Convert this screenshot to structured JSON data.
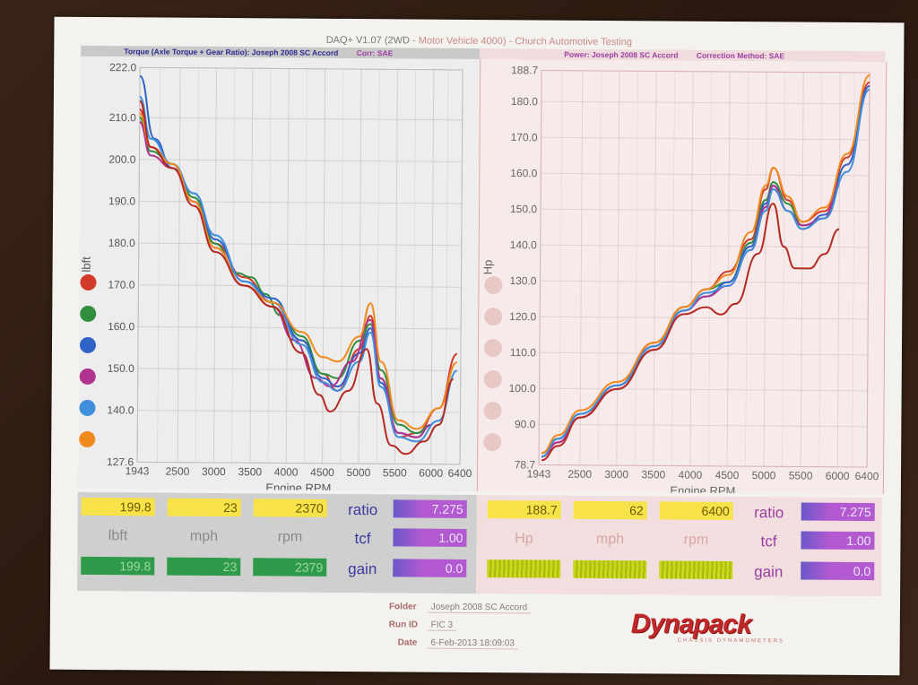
{
  "header": {
    "title_part1": "DAQ+ V1.07 (2WD",
    "title_part2": " - Motor Vehicle 4000) - Church Automotive Testing"
  },
  "left_bar": {
    "title": "Torque (Axle Torque + Gear Ratio): Joseph 2008 SC Accord",
    "corr": "Corr: SAE"
  },
  "right_bar": {
    "title": "Power: Joseph 2008 SC Accord",
    "correction": "Correction Method: SAE"
  },
  "colors": {
    "red": "#d23a2a",
    "darkred": "#b52a22",
    "green": "#2f8f3e",
    "blue": "#2f63c8",
    "magenta": "#b0338f",
    "lightblue": "#3f8fdc",
    "orange": "#f08a1e"
  },
  "legend_dots_left": [
    "#d23a2a",
    "#2f8f3e",
    "#2f63c8",
    "#b0338f",
    "#3f8fdc",
    "#f08a1e"
  ],
  "chart_data": [
    {
      "type": "line",
      "ylabel": "lbft",
      "xlabel": "Engine RPM",
      "x_ticks": [
        "1943",
        "2500",
        "3000",
        "3500",
        "4000",
        "4500",
        "5000",
        "5500",
        "6000",
        "6400"
      ],
      "xlim": [
        1943,
        6400
      ],
      "y_ticks": [
        "222.0",
        "210.0",
        "200.0",
        "190.0",
        "180.0",
        "170.0",
        "160.0",
        "150.0",
        "140.0",
        "127.6"
      ],
      "ylim": [
        127.6,
        222.0
      ],
      "grid": true,
      "series": [
        {
          "color": "#d23a2a",
          "x": [
            1943,
            2100,
            2400,
            2700,
            3000,
            3400,
            3800,
            4200,
            4500,
            4700,
            5000,
            5150,
            5300,
            5550,
            5800,
            6100,
            6350
          ],
          "y": [
            212,
            203,
            199,
            190,
            180,
            172,
            166,
            157,
            149,
            145,
            155,
            163,
            148,
            134,
            135,
            141,
            154
          ]
        },
        {
          "color": "#2f8f3e",
          "x": [
            1943,
            2100,
            2400,
            2700,
            3000,
            3300,
            3500,
            3700,
            3900,
            4200,
            4500,
            4700,
            5000,
            5150,
            5300,
            5550,
            5800,
            6000
          ],
          "y": [
            210,
            202,
            199,
            191,
            180,
            173,
            172,
            168,
            163,
            158,
            149,
            148,
            157,
            161,
            150,
            137,
            135,
            137
          ]
        },
        {
          "color": "#2f63c8",
          "x": [
            1943,
            2150,
            2400,
            2700,
            3000,
            3400,
            3800,
            4200,
            4500,
            4700,
            5000,
            5150,
            5300,
            5550,
            5800,
            6000
          ],
          "y": [
            220,
            205,
            198,
            192,
            181,
            171,
            167,
            157,
            148,
            146,
            154,
            160,
            147,
            135,
            134,
            137
          ]
        },
        {
          "color": "#b0338f",
          "x": [
            1943,
            2100,
            2400,
            2700,
            3000,
            3400,
            3800,
            4100,
            4400,
            4600,
            4900,
            5150,
            5300,
            5550,
            5800,
            6000
          ],
          "y": [
            209,
            201,
            198,
            190,
            179,
            170,
            165,
            157,
            148,
            146,
            152,
            162,
            148,
            135,
            134,
            137
          ]
        },
        {
          "color": "#3f8fdc",
          "x": [
            1943,
            2100,
            2400,
            2700,
            3000,
            3400,
            3800,
            4200,
            4500,
            4700,
            5000,
            5150,
            5300,
            5550,
            5800,
            6100,
            6350
          ],
          "y": [
            215,
            205,
            199,
            192,
            182,
            171,
            166,
            156,
            147,
            145,
            152,
            159,
            146,
            134,
            133,
            138,
            150
          ]
        },
        {
          "color": "#f08a1e",
          "x": [
            1943,
            2100,
            2400,
            2700,
            3000,
            3400,
            3800,
            4200,
            4500,
            4700,
            5000,
            5150,
            5300,
            5550,
            5800,
            6100,
            6350
          ],
          "y": [
            211,
            203,
            199,
            190,
            179,
            170,
            166,
            159,
            153,
            152,
            158,
            166,
            152,
            138,
            136,
            141,
            152
          ]
        },
        {
          "color": "#b52a22",
          "x": [
            1943,
            2100,
            2400,
            2700,
            3000,
            3400,
            3800,
            4200,
            4450,
            4600,
            4850,
            5100,
            5250,
            5450,
            5650,
            5900,
            6100,
            6300
          ],
          "y": [
            214,
            203,
            198,
            189,
            178,
            170,
            165,
            154,
            144,
            140,
            145,
            155,
            142,
            132,
            130,
            133,
            137,
            148
          ]
        }
      ]
    },
    {
      "type": "line",
      "ylabel": "Hp",
      "xlabel": "Engine RPM",
      "x_ticks": [
        "1943",
        "2500",
        "3000",
        "3500",
        "4000",
        "4500",
        "5000",
        "5500",
        "6000",
        "6400"
      ],
      "xlim": [
        1943,
        6400
      ],
      "y_ticks": [
        "188.7",
        "180.0",
        "170.0",
        "160.0",
        "150.0",
        "140.0",
        "130.0",
        "120.0",
        "110.0",
        "100.0",
        "90.0",
        "78.7"
      ],
      "ylim": [
        78.7,
        188.7
      ],
      "grid": true,
      "series": [
        {
          "color": "#d23a2a",
          "x": [
            1980,
            2200,
            2500,
            3000,
            3500,
            3900,
            4200,
            4500,
            4800,
            5000,
            5100,
            5300,
            5500,
            5800,
            6100,
            6400
          ],
          "y": [
            81,
            85,
            92,
            101,
            113,
            123,
            128,
            133,
            142,
            156,
            162,
            153,
            147,
            150,
            165,
            186
          ]
        },
        {
          "color": "#2f8f3e",
          "x": [
            1980,
            2200,
            2500,
            3000,
            3500,
            3900,
            4200,
            4500,
            4800,
            5000,
            5100,
            5300,
            5500,
            5800,
            6000
          ],
          "y": [
            82,
            86,
            93,
            101,
            112,
            123,
            128,
            130,
            141,
            153,
            158,
            152,
            146,
            148,
            157
          ]
        },
        {
          "color": "#2f63c8",
          "x": [
            1980,
            2200,
            2500,
            3000,
            3500,
            3900,
            4200,
            4500,
            4800,
            5000,
            5100,
            5300,
            5500,
            5800,
            6100,
            6400
          ],
          "y": [
            81,
            86,
            93,
            101,
            112,
            122,
            126,
            130,
            140,
            152,
            157,
            150,
            145,
            149,
            163,
            185
          ]
        },
        {
          "color": "#b0338f",
          "x": [
            1980,
            2200,
            2500,
            3000,
            3500,
            3900,
            4200,
            4500,
            4800,
            5000,
            5100,
            5300,
            5500,
            5800,
            6000
          ],
          "y": [
            81,
            85,
            92,
            100,
            111,
            122,
            126,
            129,
            139,
            151,
            157,
            150,
            146,
            148,
            158
          ]
        },
        {
          "color": "#3f8fdc",
          "x": [
            1980,
            2200,
            2500,
            3000,
            3500,
            3900,
            4200,
            4500,
            4800,
            5000,
            5100,
            5300,
            5500,
            5800,
            6100,
            6400
          ],
          "y": [
            81,
            86,
            93,
            101,
            112,
            122,
            127,
            129,
            139,
            150,
            156,
            150,
            145,
            148,
            161,
            184
          ]
        },
        {
          "color": "#f08a1e",
          "x": [
            1980,
            2200,
            2500,
            3000,
            3500,
            3900,
            4200,
            4500,
            4800,
            5000,
            5100,
            5300,
            5500,
            5800,
            6100,
            6400
          ],
          "y": [
            82,
            87,
            94,
            102,
            113,
            123,
            128,
            132,
            144,
            157,
            162,
            154,
            147,
            151,
            166,
            188
          ]
        },
        {
          "color": "#b52a22",
          "x": [
            1980,
            2200,
            2500,
            3000,
            3500,
            3900,
            4200,
            4400,
            4600,
            4900,
            5100,
            5250,
            5400,
            5600,
            5800,
            6000
          ],
          "y": [
            80,
            84,
            92,
            100,
            111,
            121,
            123,
            121,
            124,
            138,
            152,
            140,
            134,
            134,
            138,
            145
          ]
        }
      ]
    }
  ],
  "stats_left": {
    "row1": [
      "199.8",
      "23",
      "2370"
    ],
    "row2_labels": [
      "lbft",
      "mph",
      "rpm"
    ],
    "row3": [
      "199.8",
      "23",
      "2379"
    ],
    "ratio_label": "ratio",
    "ratio_value": "7.275",
    "tcf_label": "tcf",
    "tcf_value": "1.00",
    "gain_label": "gain",
    "gain_value": "0.0"
  },
  "stats_right": {
    "row1": [
      "188.7",
      "62",
      "6400"
    ],
    "row2_labels": [
      "Hp",
      "mph",
      "rpm"
    ],
    "ratio_label": "ratio",
    "ratio_value": "7.275",
    "tcf_label": "tcf",
    "tcf_value": "1.00",
    "gain_label": "gain",
    "gain_value": "0.0"
  },
  "footer": {
    "folder_label": "Folder",
    "folder_value": "Joseph 2008 SC Accord",
    "runid_label": "Run ID",
    "runid_value": "FIC 3",
    "date_label": "Date",
    "date_value": "6-Feb-2013 18:09:03"
  },
  "logo": {
    "text": "Dynapack",
    "sub": "CHASSIS DYNAMOMETERS"
  }
}
